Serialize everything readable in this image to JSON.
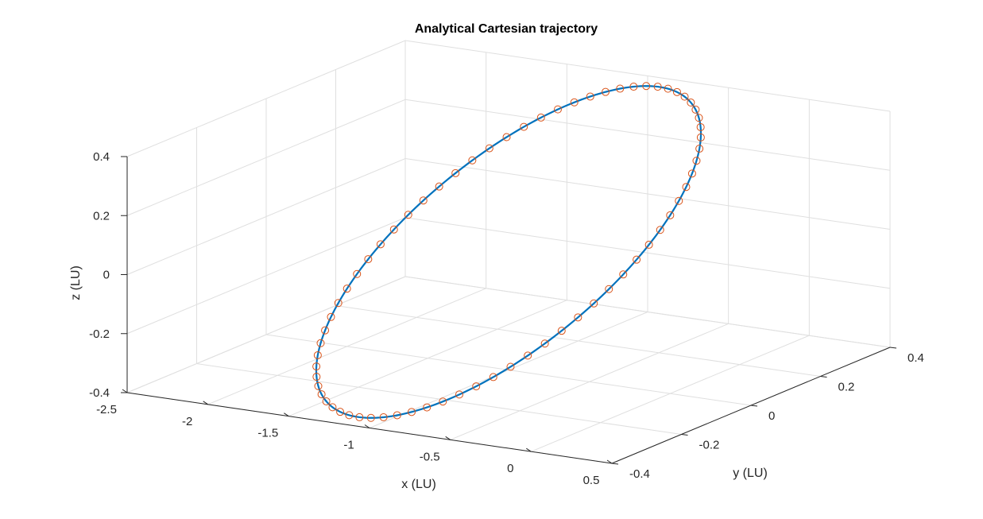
{
  "chart_data": {
    "type": "line3d",
    "title": "Analytical Cartesian trajectory",
    "xlabel": "x (LU)",
    "ylabel": "y (LU)",
    "zlabel": "z (LU)",
    "xlim": [
      -2.5,
      0.5
    ],
    "ylim": [
      -0.4,
      0.4
    ],
    "zlim": [
      -0.4,
      0.4
    ],
    "xticks": [
      -2.5,
      -2,
      -1.5,
      -1,
      -0.5,
      0,
      0.5
    ],
    "yticks": [
      -0.4,
      -0.2,
      0,
      0.2,
      0.4
    ],
    "zticks": [
      -0.4,
      -0.2,
      0,
      0.2,
      0.4
    ],
    "xtick_labels": [
      "-2.5",
      "-2",
      "-1.5",
      "-1",
      "-0.5",
      "0",
      "0.5"
    ],
    "ytick_labels": [
      "-0.4",
      "-0.2",
      "0",
      "0.2",
      "0.4"
    ],
    "ztick_labels": [
      "-0.4",
      "-0.2",
      "0",
      "0.2",
      "0.4"
    ],
    "grid": true,
    "series": [
      {
        "style": "line",
        "color": "#0072BD",
        "orbit": {
          "x_center": -1.0,
          "x_semi_axis": 1.0,
          "y_amplitude": 0.3,
          "z_amplitude": 0.45,
          "z_phase_deg": 27,
          "samples": 240
        }
      },
      {
        "style": "markers",
        "marker": "circle",
        "color": "#D95319",
        "orbit": {
          "x_center": -1.0,
          "x_semi_axis": 1.0,
          "y_amplitude": 0.3,
          "z_amplitude": 0.45,
          "z_phase_deg": 27,
          "samples": 70
        }
      }
    ]
  }
}
